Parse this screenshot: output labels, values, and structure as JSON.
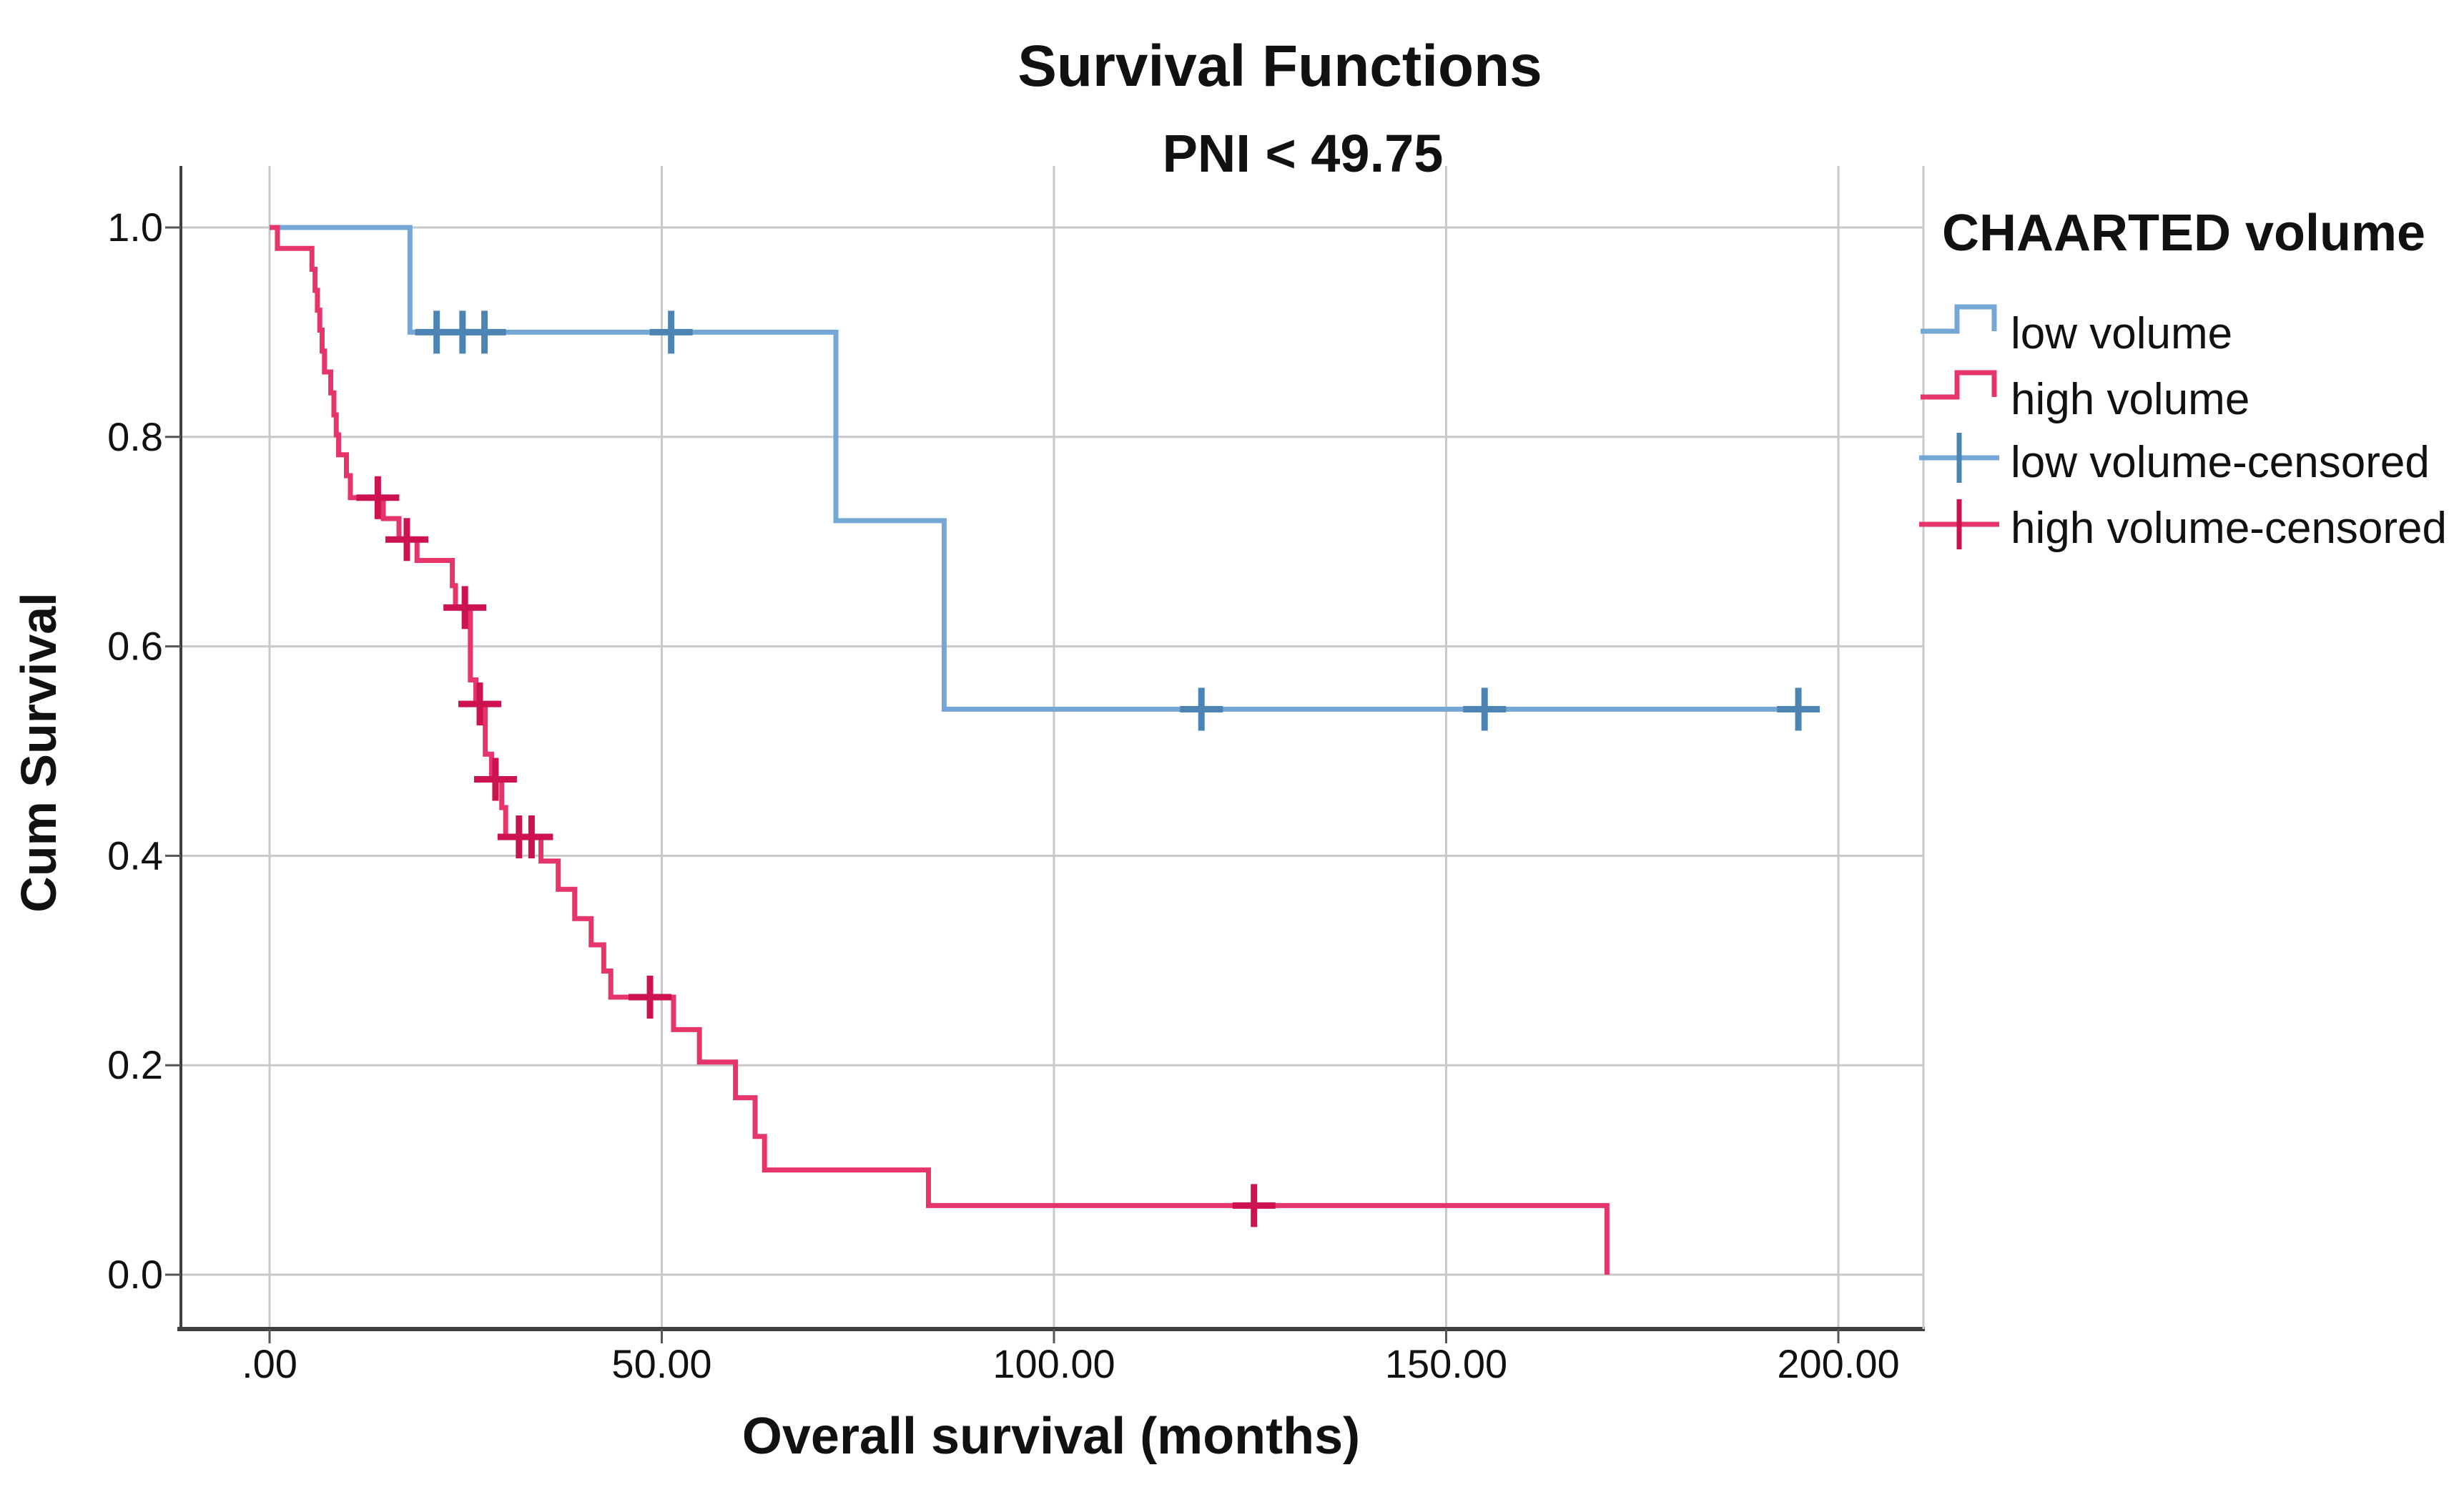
{
  "chart_data": {
    "type": "line",
    "variant": "kaplan_meier_step",
    "title": "Survival Functions",
    "subtitle": "PNI < 49.75",
    "xlabel": "Overall survival (months)",
    "ylabel": "Cum Survival",
    "legend_title": "CHAARTED volume",
    "legend_position": "right",
    "grid": true,
    "xlim": [
      -11.5,
      212
    ],
    "ylim": [
      -0.05,
      1.06
    ],
    "x_ticks": [
      {
        "v": 0,
        "label": ".00"
      },
      {
        "v": 50,
        "label": "50.00"
      },
      {
        "v": 100,
        "label": "100.00"
      },
      {
        "v": 150,
        "label": "150.00"
      },
      {
        "v": 200,
        "label": "200.00"
      }
    ],
    "y_ticks": [
      {
        "v": 0.0,
        "label": "0.0"
      },
      {
        "v": 0.2,
        "label": "0.2"
      },
      {
        "v": 0.4,
        "label": "0.4"
      },
      {
        "v": 0.6,
        "label": "0.6"
      },
      {
        "v": 0.8,
        "label": "0.8"
      },
      {
        "v": 1.0,
        "label": "1.0"
      }
    ],
    "series": [
      {
        "name": "low volume",
        "color": "#74a7d6",
        "censor_color": "#4c84b4",
        "end_time": 196.3,
        "steps": [
          [
            0,
            1.0
          ],
          [
            17.9,
            0.9
          ],
          [
            72.2,
            0.72
          ],
          [
            86.0,
            0.54
          ]
        ],
        "censored": [
          [
            21.3,
            0.9
          ],
          [
            24.6,
            0.9
          ],
          [
            27.4,
            0.9
          ],
          [
            51.2,
            0.9
          ],
          [
            118.8,
            0.54
          ],
          [
            154.9,
            0.54
          ],
          [
            194.9,
            0.54
          ]
        ]
      },
      {
        "name": "high volume",
        "color": "#e6356a",
        "censor_color": "#cc1350",
        "end_time": 170.5,
        "steps": [
          [
            0,
            1.0
          ],
          [
            1.0,
            0.98
          ],
          [
            5.4,
            0.96
          ],
          [
            5.8,
            0.94
          ],
          [
            6.1,
            0.921
          ],
          [
            6.4,
            0.902
          ],
          [
            6.7,
            0.882
          ],
          [
            7.0,
            0.862
          ],
          [
            7.8,
            0.842
          ],
          [
            8.2,
            0.821
          ],
          [
            8.5,
            0.802
          ],
          [
            8.8,
            0.783
          ],
          [
            9.8,
            0.763
          ],
          [
            10.3,
            0.742
          ],
          [
            14.5,
            0.722
          ],
          [
            16.5,
            0.702
          ],
          [
            18.8,
            0.682
          ],
          [
            23.3,
            0.658
          ],
          [
            23.7,
            0.637
          ],
          [
            25.6,
            0.568
          ],
          [
            26.3,
            0.545
          ],
          [
            27.5,
            0.497
          ],
          [
            28.3,
            0.473
          ],
          [
            29.6,
            0.446
          ],
          [
            30.1,
            0.418
          ],
          [
            34.6,
            0.395
          ],
          [
            36.8,
            0.368
          ],
          [
            38.9,
            0.34
          ],
          [
            41.0,
            0.315
          ],
          [
            42.6,
            0.29
          ],
          [
            43.5,
            0.265
          ],
          [
            51.5,
            0.234
          ],
          [
            54.8,
            0.203
          ],
          [
            59.4,
            0.169
          ],
          [
            61.9,
            0.132
          ],
          [
            63.1,
            0.1
          ],
          [
            84.0,
            0.066
          ],
          [
            170.5,
            0.0
          ]
        ],
        "censored": [
          [
            13.8,
            0.742
          ],
          [
            17.5,
            0.702
          ],
          [
            24.9,
            0.637
          ],
          [
            26.8,
            0.545
          ],
          [
            28.8,
            0.473
          ],
          [
            31.8,
            0.418
          ],
          [
            33.4,
            0.418
          ],
          [
            48.5,
            0.265
          ],
          [
            125.5,
            0.066
          ]
        ]
      }
    ],
    "legend_entries": [
      {
        "label": "low volume",
        "symbol": "step",
        "series": 0
      },
      {
        "label": "high volume",
        "symbol": "step",
        "series": 1
      },
      {
        "label": "low volume-censored",
        "symbol": "censored",
        "series": 0
      },
      {
        "label": "high volume-censored",
        "symbol": "censored",
        "series": 1
      }
    ]
  },
  "colors": {
    "background": "#ffffff",
    "text": "#111111",
    "grid": "#c9c9c9",
    "axis": "#3f3f3f",
    "tick": "#555555"
  }
}
